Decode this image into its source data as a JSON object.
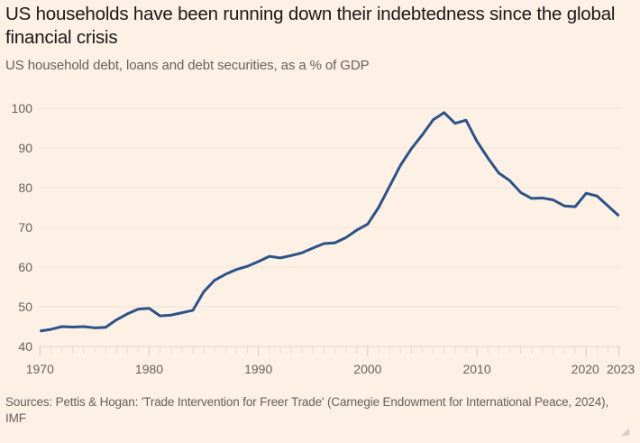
{
  "header": {
    "title": "US households have been running down their indebtedness since the global financial crisis",
    "subtitle": "US household debt, loans and debt securities, as a % of GDP"
  },
  "footer": {
    "source": "Sources: Pettis & Hogan: 'Trade Intervention for Freer Trade' (Carnegie Endowment for International Peace, 2024), IMF"
  },
  "colors": {
    "line": "#2b5388",
    "background": "#fdf1e6",
    "grid": "#f2e5d9",
    "axis_text": "#66605c"
  },
  "chart_data": {
    "type": "line",
    "title": "US households have been running down their indebtedness since the global financial crisis",
    "subtitle": "US household debt, loans and debt securities, as a % of GDP",
    "xlabel": "",
    "ylabel": "",
    "xlim": [
      1970,
      2023
    ],
    "ylim": [
      40,
      100
    ],
    "yticks": [
      40,
      50,
      60,
      70,
      80,
      90,
      100
    ],
    "xticks": [
      1970,
      1980,
      1990,
      2000,
      2010,
      2020,
      2023
    ],
    "grid": true,
    "legend": "none",
    "x": [
      1970,
      1971,
      1972,
      1973,
      1974,
      1975,
      1976,
      1977,
      1978,
      1979,
      1980,
      1981,
      1982,
      1983,
      1984,
      1985,
      1986,
      1987,
      1988,
      1989,
      1990,
      1991,
      1992,
      1993,
      1994,
      1995,
      1996,
      1997,
      1998,
      1999,
      2000,
      2001,
      2002,
      2003,
      2004,
      2005,
      2006,
      2007,
      2008,
      2009,
      2010,
      2011,
      2012,
      2013,
      2014,
      2015,
      2016,
      2017,
      2018,
      2019,
      2020,
      2021,
      2022,
      2023
    ],
    "series": [
      {
        "name": "US household debt (% of GDP)",
        "values": [
          43.9,
          44.3,
          45.0,
          44.9,
          45.0,
          44.7,
          44.8,
          46.7,
          48.2,
          49.4,
          49.6,
          47.7,
          47.9,
          48.5,
          49.1,
          53.8,
          56.7,
          58.2,
          59.4,
          60.2,
          61.4,
          62.7,
          62.3,
          62.9,
          63.6,
          64.8,
          65.9,
          66.1,
          67.4,
          69.3,
          70.8,
          75.0,
          80.3,
          85.6,
          89.8,
          93.3,
          97.1,
          98.9,
          96.2,
          97.0,
          91.7,
          87.5,
          83.7,
          81.8,
          78.8,
          77.3,
          77.4,
          76.9,
          75.4,
          75.2,
          78.6,
          77.9,
          75.4,
          72.9
        ]
      }
    ]
  }
}
